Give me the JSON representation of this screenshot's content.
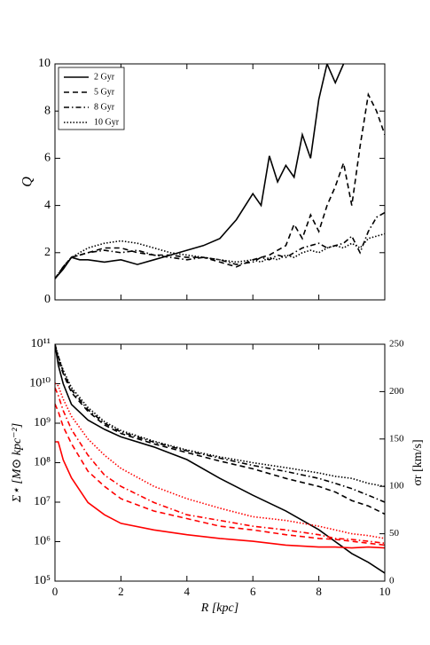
{
  "chart_data": [
    {
      "type": "line",
      "ylabel": "Q",
      "legend": "upper left",
      "x": [
        0,
        0.25,
        0.5,
        0.75,
        1,
        1.5,
        2,
        2.5,
        3,
        3.5,
        4,
        4.5,
        5,
        5.5,
        6,
        6.25,
        6.5,
        6.75,
        7,
        7.25,
        7.5,
        7.75,
        8,
        8.25,
        8.5,
        8.75,
        9,
        9.25,
        9.5,
        9.75,
        10
      ],
      "xlim": [
        0,
        10
      ],
      "xticks": [
        0,
        2,
        4,
        6,
        8,
        10
      ],
      "ylim": [
        0,
        10
      ],
      "yticks": [
        0,
        2,
        4,
        6,
        8,
        10
      ],
      "series": [
        {
          "name": "2 Gyr",
          "color": "#000000",
          "linestyle": "solid",
          "values": [
            0.9,
            1.3,
            1.8,
            1.7,
            1.7,
            1.6,
            1.7,
            1.5,
            1.7,
            1.9,
            2.1,
            2.3,
            2.6,
            3.4,
            4.5,
            4.0,
            6.1,
            5.0,
            5.7,
            5.2,
            7.0,
            6.0,
            8.5,
            10,
            9.2,
            10,
            null,
            null,
            null,
            null,
            null
          ]
        },
        {
          "name": "5 Gyr",
          "color": "#000000",
          "linestyle": "dashed",
          "values": [
            0.9,
            1.4,
            1.8,
            1.9,
            2.0,
            2.2,
            2.2,
            2.0,
            1.9,
            1.9,
            1.8,
            1.8,
            1.6,
            1.4,
            1.7,
            1.8,
            1.9,
            2.1,
            2.3,
            3.2,
            2.6,
            3.6,
            2.9,
            4.0,
            4.8,
            5.8,
            4.0,
            6.5,
            8.7,
            8.0,
            7.0
          ]
        },
        {
          "name": "8 Gyr",
          "color": "#000000",
          "linestyle": "dashdot",
          "values": [
            0.9,
            1.4,
            1.8,
            1.9,
            2.0,
            2.1,
            2.0,
            2.1,
            1.9,
            1.8,
            1.7,
            1.8,
            1.7,
            1.5,
            1.6,
            1.8,
            1.7,
            1.9,
            1.8,
            2.0,
            2.2,
            2.3,
            2.4,
            2.2,
            2.3,
            2.4,
            2.7,
            2.0,
            2.9,
            3.5,
            3.7
          ]
        },
        {
          "name": "10 Gyr",
          "color": "#000000",
          "linestyle": "dotted",
          "values": [
            0.9,
            1.4,
            1.8,
            2.0,
            2.2,
            2.4,
            2.5,
            2.4,
            2.2,
            2.0,
            1.9,
            1.8,
            1.7,
            1.6,
            1.7,
            1.6,
            1.8,
            1.7,
            1.9,
            1.8,
            2.0,
            2.1,
            2.0,
            2.2,
            2.3,
            2.2,
            2.4,
            2.2,
            2.6,
            2.7,
            2.8
          ]
        }
      ]
    },
    {
      "type": "line",
      "xlabel": "R [kpc]",
      "ylabel": "Σ⋆ [M⊙ kpc⁻²]",
      "y2label": "σr [km/s]",
      "ylog": true,
      "x": [
        0,
        0.1,
        0.25,
        0.5,
        1,
        1.5,
        2,
        3,
        4,
        5,
        6,
        7,
        8,
        8.5,
        9,
        9.5,
        10
      ],
      "xlim": [
        0,
        10
      ],
      "xticks": [
        0,
        2,
        4,
        6,
        8,
        10
      ],
      "ylim": [
        100000,
        100000000000
      ],
      "yticks": [
        {
          "value": 100000,
          "label": "10⁵"
        },
        {
          "value": 1000000,
          "label": "10⁶"
        },
        {
          "value": 10000000,
          "label": "10⁷"
        },
        {
          "value": 100000000,
          "label": "10⁸"
        },
        {
          "value": 1000000000,
          "label": "10⁹"
        },
        {
          "value": 10000000000,
          "label": "10¹⁰"
        },
        {
          "value": 100000000000,
          "label": "10¹¹"
        }
      ],
      "y2lim": [
        0,
        250
      ],
      "y2ticks": [
        0,
        50,
        100,
        150,
        200,
        250
      ],
      "series": [
        {
          "color": "#000000",
          "linestyle": "solid",
          "values": [
            100000000000,
            30000000000,
            10000000000,
            3000000000,
            1200000000,
            700000000,
            450000000,
            250000000,
            120000000,
            40000000,
            15000000,
            6000000,
            2000000,
            1000000,
            500000,
            300000,
            160000
          ]
        },
        {
          "color": "#000000",
          "linestyle": "dashed",
          "values": [
            100000000000,
            40000000000,
            18000000000,
            6000000000,
            2000000000,
            900000000,
            550000000,
            300000000,
            180000000,
            110000000,
            70000000,
            40000000,
            25000000,
            18000000,
            11000000,
            8000000,
            5000000
          ]
        },
        {
          "color": "#000000",
          "linestyle": "dashdot",
          "values": [
            100000000000,
            50000000000,
            20000000000,
            7000000000,
            2200000000,
            1000000000,
            600000000,
            330000000,
            200000000,
            130000000,
            85000000,
            60000000,
            40000000,
            30000000,
            22000000,
            15000000,
            10000000
          ]
        },
        {
          "color": "#000000",
          "linestyle": "dotted",
          "values": [
            100000000000,
            50000000000,
            22000000000,
            8000000000,
            2500000000,
            1100000000,
            650000000,
            350000000,
            210000000,
            140000000,
            100000000,
            75000000,
            55000000,
            45000000,
            40000000,
            30000000,
            25000000
          ]
        },
        {
          "color": "#ff0000",
          "linestyle": "solid",
          "axis": "y2",
          "values": [
            147,
            147,
            128,
            109,
            83,
            70,
            61,
            54,
            49,
            45,
            42,
            38,
            36,
            36,
            35,
            36,
            35
          ]
        },
        {
          "color": "#ff0000",
          "linestyle": "dashed",
          "axis": "y2",
          "values": [
            187,
            179,
            163,
            145,
            116,
            100,
            87,
            74,
            66,
            58,
            54,
            49,
            45,
            44,
            42,
            40,
            38
          ]
        },
        {
          "color": "#ff0000",
          "linestyle": "dashdot",
          "axis": "y2",
          "values": [
            204,
            196,
            180,
            160,
            133,
            112,
            100,
            83,
            70,
            64,
            58,
            54,
            49,
            45,
            44,
            42,
            40
          ]
        },
        {
          "color": "#ff0000",
          "linestyle": "dotted",
          "axis": "y2",
          "values": [
            209,
            206,
            192,
            174,
            150,
            133,
            119,
            100,
            87,
            77,
            68,
            64,
            58,
            54,
            50,
            48,
            45
          ]
        }
      ]
    }
  ]
}
